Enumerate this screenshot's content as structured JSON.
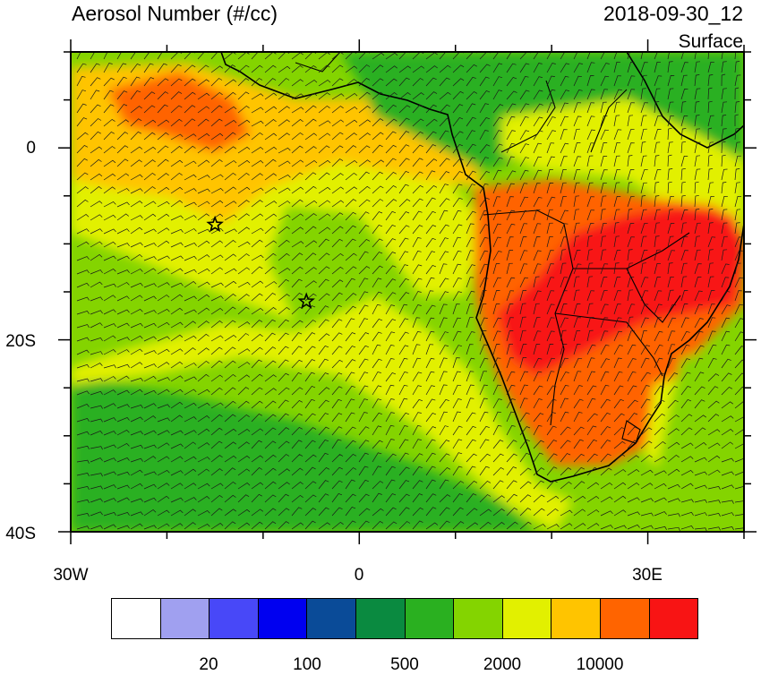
{
  "header": {
    "title": "Aerosol Number (#/cc)",
    "valid_time": "2018-09-30_12",
    "level": "Surface"
  },
  "axes": {
    "y_labels": [
      "0",
      "20S",
      "40S"
    ],
    "x_labels": [
      "30W",
      "0",
      "30E"
    ],
    "lon_range": [
      -30,
      40
    ],
    "lat_range": [
      -40,
      10
    ]
  },
  "colorbar": {
    "colors": [
      "#ffffff",
      "#a0a0f0",
      "#4848f8",
      "#0000f0",
      "#0a4b98",
      "#0a8a40",
      "#2ab020",
      "#84d400",
      "#e2f000",
      "#ffc400",
      "#ff6400",
      "#f81414"
    ],
    "labels": [
      "20",
      "100",
      "500",
      "2000",
      "10000"
    ]
  },
  "markers": [
    {
      "name": "star-marker-west",
      "lon": -15,
      "lat": -8
    },
    {
      "name": "star-marker-center",
      "lon": -5.5,
      "lat": -16
    }
  ],
  "colors": {
    "ocean_base": "#84d400",
    "ocean_south": "#2ab020",
    "haze_light": "#e2f000",
    "haze_orange": "#ffc400",
    "smoke": "#ff6400",
    "smoke_dense": "#f81414"
  }
}
